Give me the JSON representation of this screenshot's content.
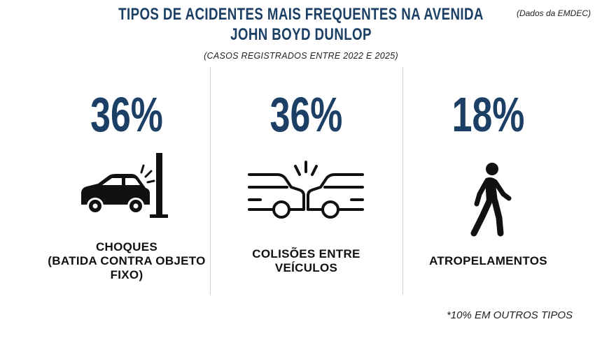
{
  "header": {
    "title_line1": "TIPOS DE ACIDENTES MAIS FREQUENTES NA AVENIDA",
    "title_line2": "JOHN BOYD DUNLOP",
    "subtitle": "(CASOS REGISTRADOS ENTRE 2022 E 2025)",
    "source": "(Dados da EMDEC)"
  },
  "stats": [
    {
      "percent": "36%",
      "label_lines": [
        "CHOQUES",
        "(BATIDA CONTRA OBJETO",
        "FIXO)"
      ],
      "icon": "car-crash-into-pole-icon"
    },
    {
      "percent": "36%",
      "label_lines": [
        "COLISÕES ENTRE",
        "VEÍCULOS"
      ],
      "icon": "two-car-collision-icon"
    },
    {
      "percent": "18%",
      "label_lines": [
        "ATROPELAMENTOS"
      ],
      "icon": "pedestrian-walking-icon"
    }
  ],
  "footnote": "*10% EM OUTROS TIPOS",
  "colors": {
    "accent": "#1c3f66",
    "text": "#111111",
    "divider": "#c9d4df",
    "background": "#ffffff"
  }
}
